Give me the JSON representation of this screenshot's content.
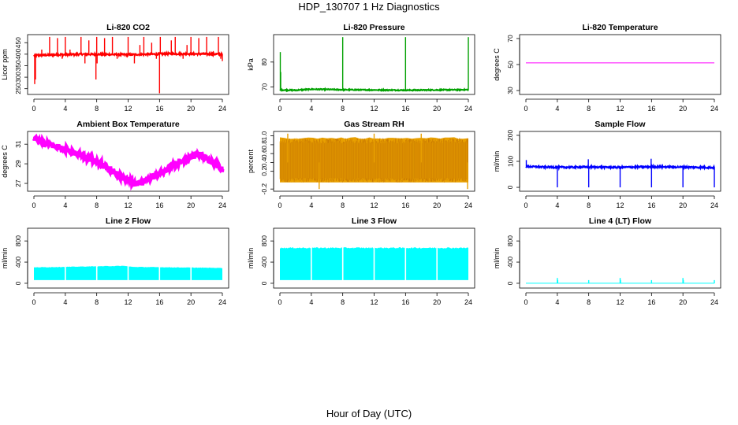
{
  "title": "HDP_130707  1 Hz Diagnostics",
  "x_caption": "Hour of Day (UTC)",
  "chart_data": [
    {
      "type": "line",
      "title": "Li-820 CO2",
      "ylabel": "Licor ppm",
      "color": "#ff0000",
      "x_ticks": [
        0,
        4,
        8,
        12,
        16,
        20,
        24
      ],
      "y_ticks": [
        250,
        300,
        350,
        400,
        450
      ],
      "y_tick_labels": [
        "250",
        "300",
        "350",
        "400",
        "450"
      ],
      "xlim": [
        0,
        24
      ],
      "ylim": [
        225,
        485
      ],
      "baseline": [
        [
          0,
          395
        ],
        [
          6,
          400
        ],
        [
          12,
          398
        ],
        [
          18,
          402
        ],
        [
          24,
          400
        ]
      ],
      "noise": 4,
      "spikes": [
        [
          0.1,
          270
        ],
        [
          0.2,
          290
        ],
        [
          1.0,
          420
        ],
        [
          1.4,
          390
        ],
        [
          2.0,
          475
        ],
        [
          3.0,
          470
        ],
        [
          3.6,
          380
        ],
        [
          4.0,
          475
        ],
        [
          4.6,
          420
        ],
        [
          6.0,
          475
        ],
        [
          6.5,
          360
        ],
        [
          7.0,
          460
        ],
        [
          7.9,
          290
        ],
        [
          8.0,
          475
        ],
        [
          8.05,
          360
        ],
        [
          9.0,
          470
        ],
        [
          10.0,
          475
        ],
        [
          10.6,
          380
        ],
        [
          12.0,
          475
        ],
        [
          12.8,
          360
        ],
        [
          13.5,
          440
        ],
        [
          14.0,
          475
        ],
        [
          15.0,
          450
        ],
        [
          15.6,
          380
        ],
        [
          16.0,
          230
        ],
        [
          16.1,
          475
        ],
        [
          17.5,
          460
        ],
        [
          18.0,
          475
        ],
        [
          19.0,
          380
        ],
        [
          19.5,
          440
        ],
        [
          20.0,
          475
        ],
        [
          21.0,
          470
        ],
        [
          22.0,
          475
        ],
        [
          23.5,
          475
        ],
        [
          23.8,
          380
        ],
        [
          24.0,
          370
        ]
      ]
    },
    {
      "type": "line",
      "title": "Li-820 Pressure",
      "ylabel": "kPa",
      "color": "#00a000",
      "x_ticks": [
        0,
        4,
        8,
        12,
        16,
        20,
        24
      ],
      "y_ticks": [
        70,
        80
      ],
      "y_tick_labels": [
        "70",
        "80"
      ],
      "xlim": [
        0,
        24
      ],
      "ylim": [
        67,
        91
      ],
      "baseline": [
        [
          0,
          68.8
        ],
        [
          2,
          68.7
        ],
        [
          4,
          69.1
        ],
        [
          8,
          68.9
        ],
        [
          12,
          68.8
        ],
        [
          16,
          68.7
        ],
        [
          20,
          68.8
        ],
        [
          24,
          68.9
        ]
      ],
      "noise": 0.2,
      "spikes": [
        [
          0.05,
          84
        ],
        [
          0.1,
          76
        ],
        [
          8.0,
          90
        ],
        [
          16.0,
          90
        ],
        [
          24.0,
          90
        ]
      ]
    },
    {
      "type": "line",
      "title": "Li-820 Temperature",
      "ylabel": "degrees C",
      "color": "#ff00ff",
      "x_ticks": [
        0,
        4,
        8,
        12,
        16,
        20,
        24
      ],
      "y_ticks": [
        30,
        50,
        70
      ],
      "y_tick_labels": [
        "30",
        "50",
        "70"
      ],
      "xlim": [
        0,
        24
      ],
      "ylim": [
        27,
        73
      ],
      "baseline": [
        [
          0,
          51.3
        ],
        [
          24,
          51.3
        ]
      ],
      "noise": 0,
      "spikes": []
    },
    {
      "type": "line",
      "title": "Ambient Box Temperature",
      "ylabel": "degrees C",
      "color": "#ff00ff",
      "x_ticks": [
        0,
        4,
        8,
        12,
        16,
        20,
        24
      ],
      "y_ticks": [
        27,
        29,
        31
      ],
      "y_tick_labels": [
        "27",
        "29",
        "31"
      ],
      "xlim": [
        0,
        24
      ],
      "ylim": [
        26.2,
        32.3
      ],
      "baseline": [
        [
          0,
          31.5
        ],
        [
          4,
          30.5
        ],
        [
          8,
          29.2
        ],
        [
          12,
          27.3
        ],
        [
          13,
          26.9
        ],
        [
          15,
          27.6
        ],
        [
          18,
          28.9
        ],
        [
          21,
          30.0
        ],
        [
          22,
          29.6
        ],
        [
          24,
          28.4
        ]
      ],
      "noise": 0.28,
      "spikes": []
    },
    {
      "type": "line",
      "title": "Gas Stream RH",
      "ylabel": "percent",
      "color": "#e8a000",
      "x_ticks": [
        0,
        4,
        8,
        12,
        16,
        20,
        24
      ],
      "y_ticks": [
        -0.2,
        0.2,
        0.4,
        0.6,
        0.8,
        1.0
      ],
      "y_tick_labels": [
        "-0.2",
        "0.2",
        "0.4",
        "0.6",
        "0.8",
        "1.0"
      ],
      "xlim": [
        0,
        24
      ],
      "ylim": [
        -0.25,
        1.1
      ],
      "baseline": [
        [
          0,
          0.4
        ],
        [
          24,
          0.4
        ]
      ],
      "noise": 0.45,
      "band": [
        [
          0,
          -0.05,
          0.95
        ],
        [
          24,
          -0.05,
          0.95
        ]
      ],
      "spikes": [
        [
          1.0,
          1.05
        ],
        [
          5.0,
          -0.2
        ],
        [
          12.0,
          1.05
        ],
        [
          18.0,
          1.05
        ],
        [
          23.9,
          -0.2
        ]
      ]
    },
    {
      "type": "line",
      "title": "Sample Flow",
      "ylabel": "ml/min",
      "color": "#0000ff",
      "x_ticks": [
        0,
        4,
        8,
        12,
        16,
        20,
        24
      ],
      "y_ticks": [
        0,
        100,
        200
      ],
      "y_tick_labels": [
        "0",
        "100",
        "200"
      ],
      "xlim": [
        0,
        24
      ],
      "ylim": [
        -15,
        215
      ],
      "baseline": [
        [
          0,
          80
        ],
        [
          4,
          77
        ],
        [
          8,
          78
        ],
        [
          12,
          77
        ],
        [
          16,
          79
        ],
        [
          20,
          78
        ],
        [
          24,
          76
        ]
      ],
      "noise": 3,
      "spikes": [
        [
          0.05,
          105
        ],
        [
          4.0,
          0
        ],
        [
          7.95,
          108
        ],
        [
          8.0,
          0
        ],
        [
          12.0,
          0
        ],
        [
          15.95,
          110
        ],
        [
          16.0,
          0
        ],
        [
          20.0,
          0
        ],
        [
          24.0,
          0
        ]
      ]
    },
    {
      "type": "area",
      "title": "Line 2 Flow",
      "ylabel": "ml/min",
      "color": "#00ffff",
      "x_ticks": [
        0,
        4,
        8,
        12,
        16,
        20,
        24
      ],
      "y_ticks": [
        0,
        400,
        800
      ],
      "y_tick_labels": [
        "0",
        "400",
        "800"
      ],
      "xlim": [
        0,
        24
      ],
      "ylim": [
        -90,
        1040
      ],
      "band": [
        [
          0,
          60,
          300
        ],
        [
          11.5,
          60,
          330
        ],
        [
          12.5,
          60,
          310
        ],
        [
          24,
          60,
          290
        ]
      ],
      "gaps": [
        4,
        8,
        12,
        16,
        20
      ],
      "spikes": []
    },
    {
      "type": "area",
      "title": "Line 3 Flow",
      "ylabel": "ml/min",
      "color": "#00ffff",
      "x_ticks": [
        0,
        4,
        8,
        12,
        16,
        20,
        24
      ],
      "y_ticks": [
        0,
        400,
        800
      ],
      "y_tick_labels": [
        "0",
        "400",
        "800"
      ],
      "xlim": [
        0,
        24
      ],
      "ylim": [
        -90,
        1040
      ],
      "band": [
        [
          0,
          60,
          670
        ],
        [
          24,
          60,
          670
        ]
      ],
      "gaps": [
        4,
        8,
        12,
        16,
        20
      ],
      "spikes": []
    },
    {
      "type": "line",
      "title": "Line 4 (LT) Flow",
      "ylabel": "ml/min",
      "color": "#00ffff",
      "x_ticks": [
        0,
        4,
        8,
        12,
        16,
        20,
        24
      ],
      "y_ticks": [
        0,
        400,
        800
      ],
      "y_tick_labels": [
        "0",
        "400",
        "800"
      ],
      "xlim": [
        0,
        24
      ],
      "ylim": [
        -90,
        1040
      ],
      "baseline": [
        [
          0,
          0
        ],
        [
          24,
          0
        ]
      ],
      "noise": 0,
      "spikes": [
        [
          4.0,
          100
        ],
        [
          4.05,
          60
        ],
        [
          8.0,
          60
        ],
        [
          12.0,
          100
        ],
        [
          12.05,
          60
        ],
        [
          16.0,
          60
        ],
        [
          20.0,
          100
        ],
        [
          20.05,
          60
        ],
        [
          24.0,
          60
        ]
      ]
    }
  ]
}
